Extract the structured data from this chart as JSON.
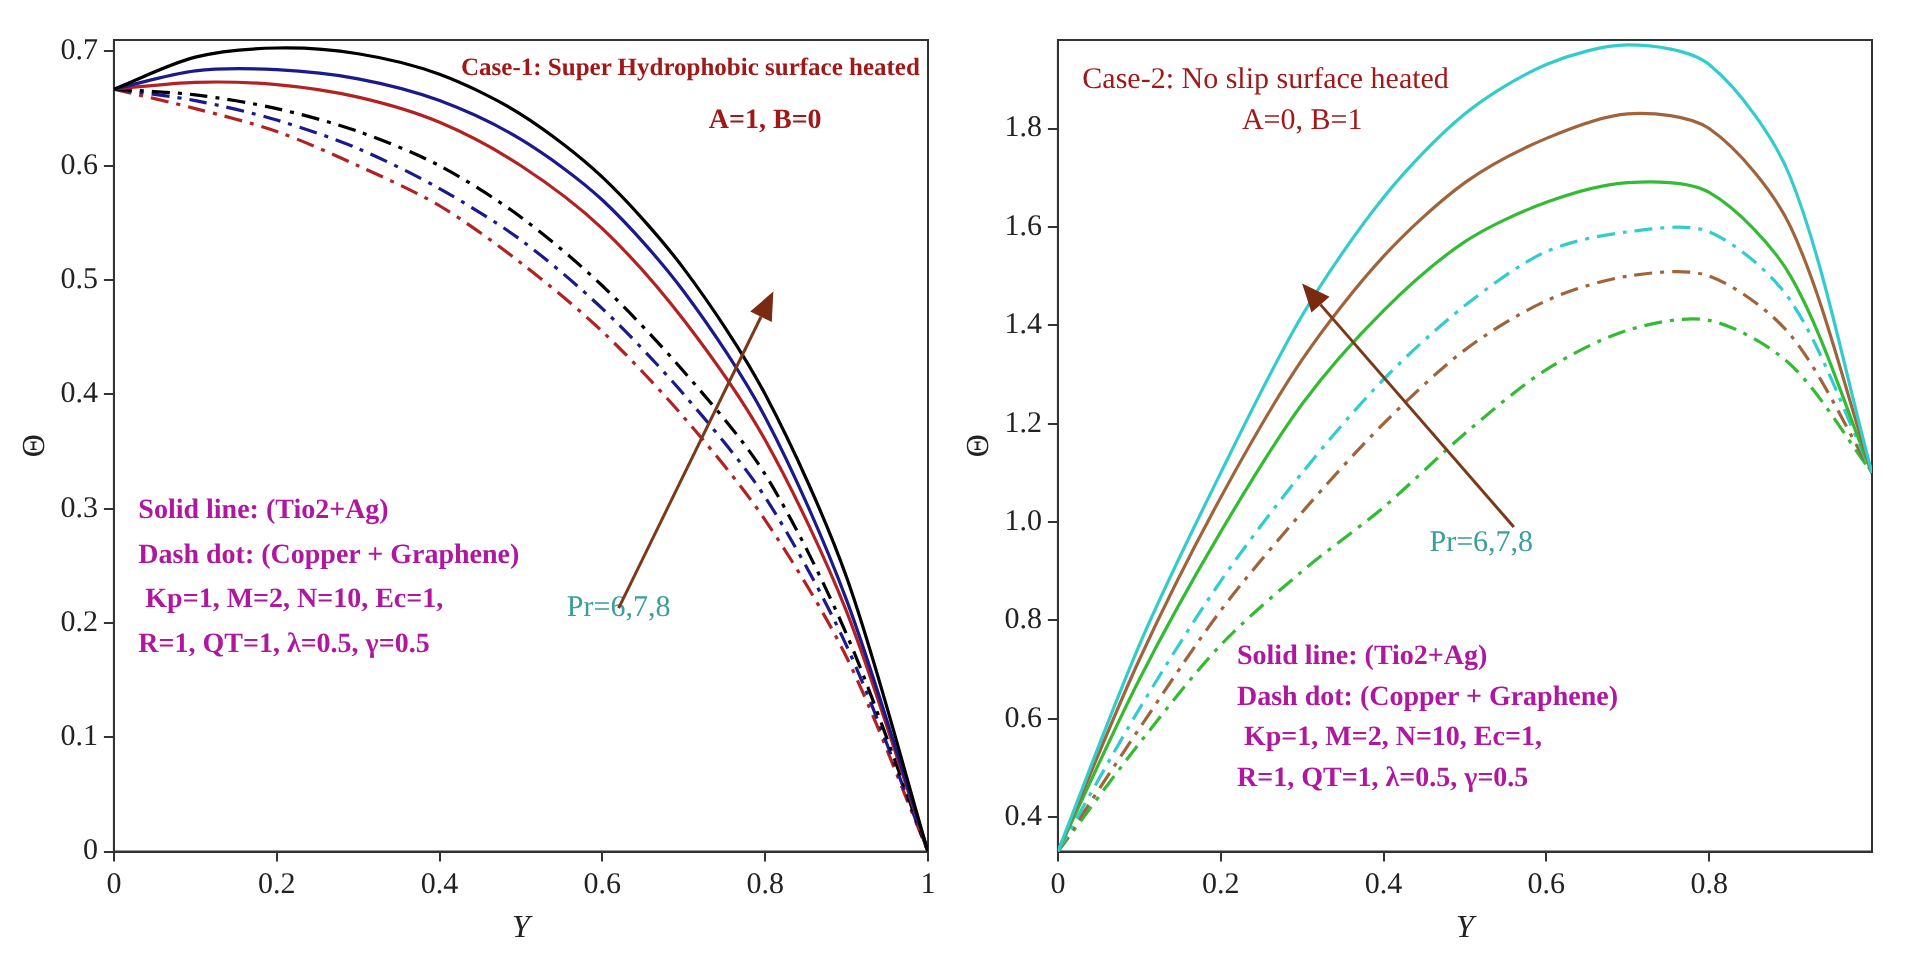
{
  "chart_data": [
    {
      "type": "line",
      "xlabel": "Y",
      "ylabel": "Θ",
      "x": [
        0,
        0.1,
        0.2,
        0.3,
        0.4,
        0.5,
        0.6,
        0.7,
        0.8,
        0.9,
        1
      ],
      "xlim": [
        0,
        1
      ],
      "xticks": [
        0,
        0.2,
        0.4,
        0.6,
        0.8,
        1
      ],
      "ylim": [
        0,
        0.71
      ],
      "yticks": [
        0,
        0.1,
        0.2,
        0.3,
        0.4,
        0.5,
        0.6,
        0.7
      ],
      "grid": false,
      "legend": false,
      "marker": "none",
      "series": [
        {
          "color": "#000000",
          "line_style": "solid",
          "values": [
            0.667,
            0.695,
            0.703,
            0.698,
            0.68,
            0.645,
            0.59,
            0.51,
            0.4,
            0.24,
            0
          ]
        },
        {
          "color": "#1a1a8c",
          "line_style": "solid",
          "values": [
            0.667,
            0.683,
            0.684,
            0.676,
            0.657,
            0.623,
            0.57,
            0.49,
            0.38,
            0.22,
            0
          ]
        },
        {
          "color": "#b22222",
          "line_style": "solid",
          "values": [
            0.667,
            0.673,
            0.671,
            0.66,
            0.638,
            0.6,
            0.545,
            0.465,
            0.36,
            0.21,
            0
          ]
        },
        {
          "color": "#000000",
          "line_style": "dashed",
          "values": [
            0.667,
            0.662,
            0.65,
            0.63,
            0.6,
            0.555,
            0.495,
            0.42,
            0.33,
            0.19,
            0
          ]
        },
        {
          "color": "#1a1a8c",
          "line_style": "dashed",
          "values": [
            0.667,
            0.657,
            0.64,
            0.615,
            0.58,
            0.535,
            0.475,
            0.4,
            0.31,
            0.18,
            0
          ]
        },
        {
          "color": "#b22222",
          "line_style": "dashed",
          "values": [
            0.667,
            0.65,
            0.63,
            0.6,
            0.565,
            0.515,
            0.455,
            0.38,
            0.29,
            0.17,
            0
          ]
        }
      ],
      "annotations": [
        "Case-1: Super Hydrophobic surface heated",
        "A=1, B=0",
        "Solid line: (Tio2+Ag)",
        "Dash dot: (Copper + Graphene)",
        " Kp=1, M=2, N=10, Ec=1,",
        "R=1, QT=1, λ=0.5, γ=0.5",
        "Pr=6,7,8"
      ]
    },
    {
      "type": "line",
      "xlabel": "Y",
      "ylabel": "Θ",
      "x": [
        0,
        0.1,
        0.2,
        0.3,
        0.4,
        0.5,
        0.6,
        0.7,
        0.8,
        0.9,
        1
      ],
      "xlim": [
        0,
        1
      ],
      "xticks": [
        0,
        0.2,
        0.4,
        0.6,
        0.8
      ],
      "ylim": [
        0.33,
        1.98
      ],
      "yticks": [
        0.4,
        0.6,
        0.8,
        {
          "value": 1,
          "label": "1.0"
        },
        1.2,
        1.4,
        1.6,
        1.8
      ],
      "grid": false,
      "legend": false,
      "marker": "none",
      "series": [
        {
          "color": "#33cccc",
          "line_style": "solid",
          "values": [
            0.33,
            0.75,
            1.1,
            1.42,
            1.66,
            1.83,
            1.93,
            1.97,
            1.93,
            1.7,
            1.1
          ]
        },
        {
          "color": "#a0643c",
          "line_style": "solid",
          "values": [
            0.33,
            0.72,
            1.05,
            1.33,
            1.54,
            1.69,
            1.78,
            1.83,
            1.8,
            1.6,
            1.1
          ]
        },
        {
          "color": "#33bb33",
          "line_style": "solid",
          "values": [
            0.33,
            0.68,
            0.98,
            1.24,
            1.43,
            1.57,
            1.65,
            1.69,
            1.67,
            1.5,
            1.1
          ]
        },
        {
          "color": "#33cccc",
          "line_style": "dashed",
          "values": [
            0.33,
            0.62,
            0.88,
            1.1,
            1.29,
            1.44,
            1.55,
            1.59,
            1.59,
            1.45,
            1.1
          ]
        },
        {
          "color": "#a0643c",
          "line_style": "dashed",
          "values": [
            0.33,
            0.58,
            0.82,
            1.02,
            1.2,
            1.35,
            1.45,
            1.5,
            1.5,
            1.38,
            1.1
          ]
        },
        {
          "color": "#33bb33",
          "line_style": "dashed",
          "values": [
            0.33,
            0.55,
            0.75,
            0.9,
            1.03,
            1.18,
            1.31,
            1.39,
            1.41,
            1.32,
            1.1
          ]
        }
      ],
      "annotations": [
        "Case-2: No slip surface heated",
        "A=0, B=1",
        "Solid line: (Tio2+Ag)",
        "Dash dot: (Copper + Graphene)",
        " Kp=1, M=2, N=10, Ec=1,",
        "R=1, QT=1, λ=0.5, γ=0.5",
        "Pr=6,7,8"
      ]
    }
  ]
}
